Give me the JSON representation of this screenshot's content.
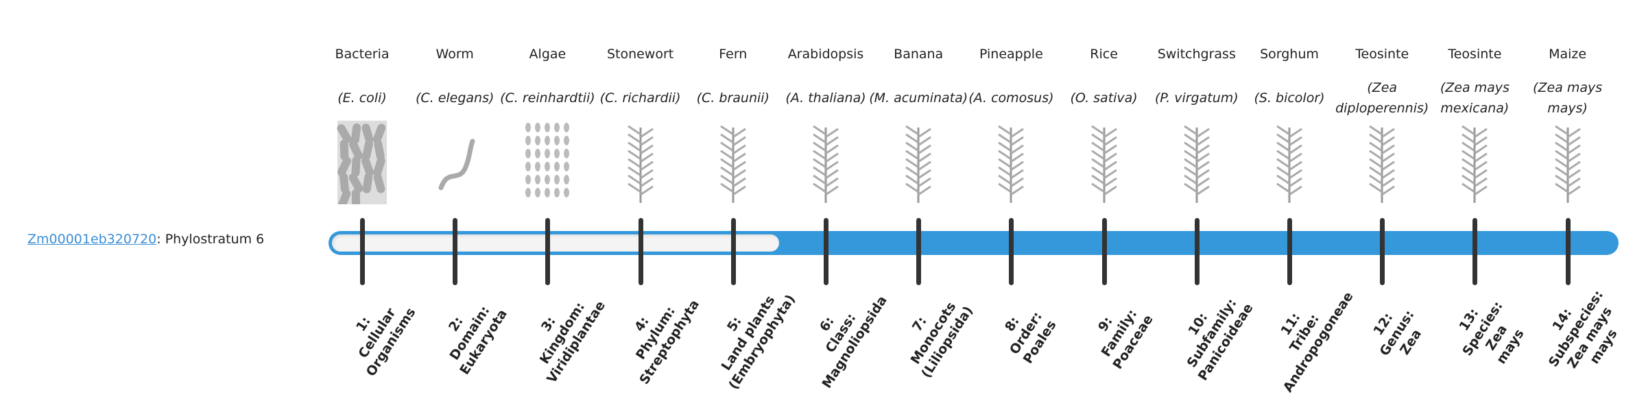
{
  "gene": {
    "id": "Zm00001eb320720",
    "suffix": ": Phylostratum 6"
  },
  "phylostratum": 6,
  "colors": {
    "bar": "#3598db",
    "empty": "#f4f4f4",
    "tick": "#333333",
    "link": "#3a8fd8"
  },
  "organisms": [
    {
      "name": "Bacteria",
      "sci": "(E. coli)",
      "icon": "bacteria-icon",
      "stratum": [
        "1:",
        "Cellular",
        "Organisms"
      ]
    },
    {
      "name": "Worm",
      "sci": "(C. elegans)",
      "icon": "worm-icon",
      "stratum": [
        "2:",
        "Domain:",
        "Eukaryota"
      ]
    },
    {
      "name": "Algae",
      "sci": "(C. reinhardtii)",
      "icon": "algae-icon",
      "stratum": [
        "3:",
        "Kingdom:",
        "Viridiplantae"
      ]
    },
    {
      "name": "Stonewort",
      "sci": "(C. richardii)",
      "icon": "stonewort-icon",
      "stratum": [
        "4:",
        "Phylum:",
        "Streptophyta"
      ]
    },
    {
      "name": "Fern",
      "sci": "(C. braunii)",
      "icon": "fern-icon",
      "stratum": [
        "5:",
        "Land plants",
        "(Embryophyta)"
      ]
    },
    {
      "name": "Arabidopsis",
      "sci": "(A. thaliana)",
      "icon": "arabidopsis-icon",
      "stratum": [
        "6:",
        "Class:",
        "Magnoliopsida"
      ]
    },
    {
      "name": "Banana",
      "sci": "(M. acuminata)",
      "icon": "banana-plant-icon",
      "stratum": [
        "7:",
        "Monocots",
        "(Liliopsida)"
      ]
    },
    {
      "name": "Pineapple",
      "sci": "(A. comosus)",
      "icon": "pineapple-icon",
      "stratum": [
        "8:",
        "Order:",
        "Poales"
      ]
    },
    {
      "name": "Rice",
      "sci": "(O. sativa)",
      "icon": "rice-icon",
      "stratum": [
        "9:",
        "Family:",
        "Poaceae"
      ]
    },
    {
      "name": "Switchgrass",
      "sci": "(P. virgatum)",
      "icon": "switchgrass-icon",
      "stratum": [
        "10:",
        "Subfamily:",
        "Panicoideae"
      ]
    },
    {
      "name": "Sorghum",
      "sci": "(S. bicolor)",
      "icon": "sorghum-icon",
      "stratum": [
        "11:",
        "Tribe:",
        "Andropogoneae"
      ]
    },
    {
      "name": "Teosinte",
      "sci": "(Zea diploperennis)",
      "icon": "teosinte-icon",
      "stratum": [
        "12:",
        "Genus:",
        "Zea"
      ]
    },
    {
      "name": "Teosinte",
      "sci": "(Zea mays mexicana)",
      "icon": "teosinte-icon",
      "stratum": [
        "13:",
        "Species:",
        "Zea",
        "mays"
      ]
    },
    {
      "name": "Maize",
      "sci": "(Zea mays mays)",
      "icon": "maize-icon",
      "stratum": [
        "14:",
        "Subspecies:",
        "Zea mays",
        "mays"
      ]
    }
  ]
}
